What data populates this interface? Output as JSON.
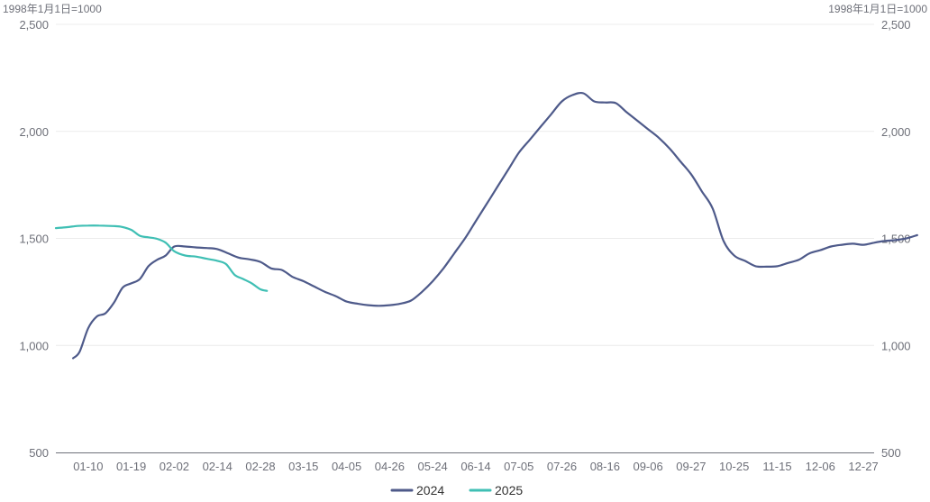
{
  "chart_data": {
    "type": "line",
    "unit_left": "1998年1月1日=1000",
    "unit_right": "1998年1月1日=1000",
    "y_ticks": [
      "2,500",
      "2,000",
      "1,500",
      "1,000",
      "500"
    ],
    "y_tick_values": [
      2500,
      2000,
      1500,
      1000,
      500
    ],
    "ylim": [
      500,
      2500
    ],
    "grid": true,
    "legend_position": "bottom-center",
    "x_ticks": [
      "01-10",
      "01-19",
      "02-02",
      "02-14",
      "02-28",
      "03-15",
      "04-05",
      "04-26",
      "05-24",
      "06-14",
      "07-05",
      "07-26",
      "08-16",
      "09-06",
      "09-27",
      "10-25",
      "11-15",
      "12-06",
      "12-27"
    ],
    "x_tick_index": [
      1,
      3,
      5,
      7,
      9,
      11,
      13,
      15,
      17,
      19,
      21,
      23,
      25,
      27,
      29,
      31,
      33,
      35,
      37
    ],
    "x_slots": 38,
    "series": [
      {
        "name": "2024",
        "color": "#4e5a8a",
        "points": [
          [
            0.3,
            940
          ],
          [
            0.6,
            970
          ],
          [
            1.0,
            1080
          ],
          [
            1.4,
            1135
          ],
          [
            1.8,
            1150
          ],
          [
            2.2,
            1200
          ],
          [
            2.6,
            1270
          ],
          [
            3.0,
            1290
          ],
          [
            3.4,
            1310
          ],
          [
            3.8,
            1370
          ],
          [
            4.2,
            1400
          ],
          [
            4.6,
            1420
          ],
          [
            5.0,
            1462
          ],
          [
            5.5,
            1462
          ],
          [
            6.0,
            1458
          ],
          [
            6.5,
            1455
          ],
          [
            7.0,
            1450
          ],
          [
            7.5,
            1430
          ],
          [
            8.0,
            1410
          ],
          [
            8.5,
            1402
          ],
          [
            9.0,
            1390
          ],
          [
            9.5,
            1360
          ],
          [
            10.0,
            1352
          ],
          [
            10.5,
            1320
          ],
          [
            11.0,
            1300
          ],
          [
            11.5,
            1275
          ],
          [
            12.0,
            1250
          ],
          [
            12.5,
            1230
          ],
          [
            13.0,
            1205
          ],
          [
            13.5,
            1195
          ],
          [
            14.0,
            1188
          ],
          [
            14.5,
            1185
          ],
          [
            15.0,
            1188
          ],
          [
            15.5,
            1195
          ],
          [
            16.0,
            1210
          ],
          [
            16.5,
            1250
          ],
          [
            17.0,
            1300
          ],
          [
            17.5,
            1360
          ],
          [
            18.0,
            1430
          ],
          [
            18.5,
            1500
          ],
          [
            19.0,
            1580
          ],
          [
            19.5,
            1660
          ],
          [
            20.0,
            1740
          ],
          [
            20.5,
            1820
          ],
          [
            21.0,
            1900
          ],
          [
            21.5,
            1960
          ],
          [
            22.0,
            2020
          ],
          [
            22.5,
            2080
          ],
          [
            23.0,
            2140
          ],
          [
            23.5,
            2170
          ],
          [
            24.0,
            2178
          ],
          [
            24.5,
            2140
          ],
          [
            25.0,
            2135
          ],
          [
            25.5,
            2132
          ],
          [
            26.0,
            2090
          ],
          [
            26.5,
            2050
          ],
          [
            27.0,
            2010
          ],
          [
            27.5,
            1970
          ],
          [
            28.0,
            1920
          ],
          [
            28.5,
            1860
          ],
          [
            29.0,
            1800
          ],
          [
            29.5,
            1720
          ],
          [
            30.0,
            1640
          ],
          [
            30.5,
            1490
          ],
          [
            31.0,
            1420
          ],
          [
            31.5,
            1395
          ],
          [
            32.0,
            1370
          ],
          [
            32.5,
            1368
          ],
          [
            33.0,
            1370
          ],
          [
            33.5,
            1385
          ],
          [
            34.0,
            1400
          ],
          [
            34.5,
            1430
          ],
          [
            35.0,
            1445
          ],
          [
            35.5,
            1462
          ],
          [
            36.0,
            1470
          ],
          [
            36.5,
            1475
          ],
          [
            37.0,
            1470
          ],
          [
            37.5,
            1480
          ],
          [
            38.0,
            1488
          ],
          [
            38.5,
            1492
          ],
          [
            39.0,
            1500
          ],
          [
            39.5,
            1515
          ]
        ]
      },
      {
        "name": "2025",
        "color": "#3fbfb4",
        "points": [
          [
            -0.5,
            1548
          ],
          [
            0.0,
            1552
          ],
          [
            0.5,
            1558
          ],
          [
            1.0,
            1560
          ],
          [
            1.5,
            1560
          ],
          [
            2.0,
            1558
          ],
          [
            2.5,
            1555
          ],
          [
            3.0,
            1540
          ],
          [
            3.4,
            1512
          ],
          [
            3.8,
            1505
          ],
          [
            4.2,
            1498
          ],
          [
            4.6,
            1480
          ],
          [
            5.0,
            1440
          ],
          [
            5.5,
            1420
          ],
          [
            6.0,
            1415
          ],
          [
            6.5,
            1405
          ],
          [
            7.0,
            1395
          ],
          [
            7.4,
            1380
          ],
          [
            7.8,
            1330
          ],
          [
            8.2,
            1310
          ],
          [
            8.6,
            1290
          ],
          [
            9.0,
            1262
          ],
          [
            9.3,
            1255
          ]
        ]
      }
    ]
  }
}
